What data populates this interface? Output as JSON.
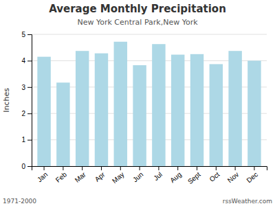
{
  "chart_data": {
    "type": "bar",
    "title": "Average Monthly Precipitation",
    "subtitle": "New York Central Park,New York",
    "y_label": "Inches",
    "categories": [
      "Jan",
      "Feb",
      "Mar",
      "Apr",
      "May",
      "Jun",
      "Jul",
      "Aug",
      "Sept",
      "Oct",
      "Nov",
      "Dec"
    ],
    "values": [
      4.15,
      3.17,
      4.37,
      4.28,
      4.72,
      3.83,
      4.63,
      4.23,
      4.25,
      3.87,
      4.37,
      4.0
    ],
    "color": "#add8e6",
    "ylim": [
      0.0,
      5.0
    ],
    "yticks": [
      0.0,
      1.0,
      2.0,
      3.0,
      4.0,
      5.0
    ],
    "grid": true,
    "annotations": [
      "1971-2000",
      "rssWeather.com"
    ]
  }
}
